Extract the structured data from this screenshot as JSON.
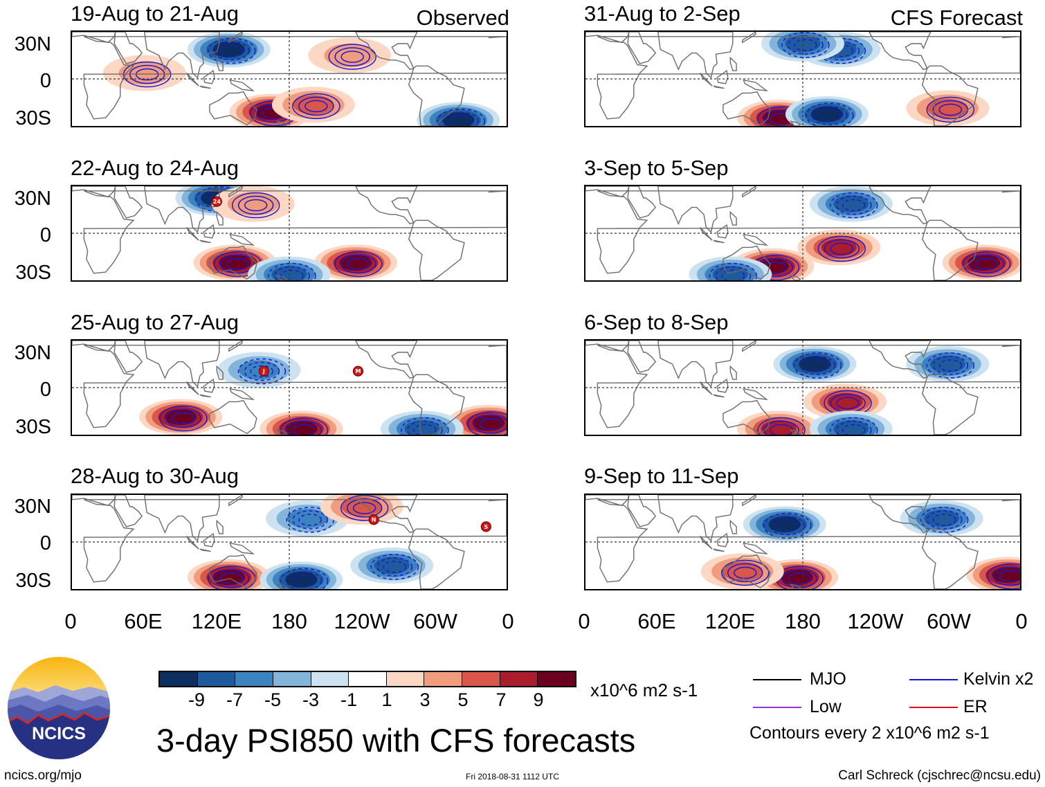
{
  "headers": {
    "left": "Observed",
    "right": "CFS Forecast"
  },
  "panels_left": [
    {
      "title": "19-Aug to 21-Aug"
    },
    {
      "title": "22-Aug to 24-Aug"
    },
    {
      "title": "25-Aug to 27-Aug"
    },
    {
      "title": "28-Aug to 30-Aug"
    }
  ],
  "panels_right": [
    {
      "title": "31-Aug to 2-Sep"
    },
    {
      "title": "3-Sep to 5-Sep"
    },
    {
      "title": "6-Sep to 8-Sep"
    },
    {
      "title": "9-Sep to 11-Sep"
    }
  ],
  "lat_labels": [
    "30N",
    "0",
    "30S"
  ],
  "lon_labels": [
    "0",
    "60E",
    "120E",
    "180",
    "120W",
    "60W",
    "0"
  ],
  "storm_markers": [
    {
      "panel": "left-1",
      "label": "24"
    },
    {
      "panel": "left-2",
      "label": "J"
    },
    {
      "panel": "left-2",
      "label": "M"
    },
    {
      "panel": "left-3",
      "label": "N"
    },
    {
      "panel": "left-3",
      "label": "S"
    }
  ],
  "colorbar": {
    "labels": [
      "-9",
      "-7",
      "-5",
      "-3",
      "-1",
      "1",
      "3",
      "5",
      "7",
      "9"
    ],
    "colors": [
      "#0b2e5e",
      "#1f5b9c",
      "#3d83c0",
      "#83b5da",
      "#cde2f0",
      "#ffffff",
      "#fbd7c4",
      "#f19d7d",
      "#d9574a",
      "#ab1d2c",
      "#6b0020"
    ],
    "units": "x10^6 m2 s-1"
  },
  "legend": {
    "items": [
      {
        "label": "MJO",
        "color": "#000000"
      },
      {
        "label": "Kelvin x2",
        "color": "#1515d6"
      },
      {
        "label": "Low",
        "color": "#9a34d8"
      },
      {
        "label": "ER",
        "color": "#e01010"
      }
    ],
    "contour_note": "Contours every 2 x10^6 m2 s-1"
  },
  "title": "3-day PSI850 with CFS forecasts",
  "logo_text": "NCICS",
  "footer": {
    "website": "ncics.org/mjo",
    "timestamp": "Fri 2018-08-31 1112 UTC",
    "author": "Carl Schreck (cjschrec@ncsu.edu)"
  },
  "chart_data": {
    "type": "heatmap",
    "variable": "3-day PSI850 anomaly",
    "units": "x10^6 m2 s-1",
    "x_axis": {
      "ticks": [
        "0",
        "60E",
        "120E",
        "180",
        "120W",
        "60W",
        "0"
      ],
      "range_deg_east": [
        0,
        360
      ]
    },
    "y_axis": {
      "ticks": [
        "30N",
        "0",
        "30S"
      ],
      "range_deg": [
        -40,
        40
      ]
    },
    "color_levels": [
      -9,
      -7,
      -5,
      -3,
      -1,
      1,
      3,
      5,
      7,
      9
    ],
    "contour_interval": 2,
    "panels": [
      {
        "period": "19-Aug to 21-Aug",
        "source": "Observed",
        "features": [
          {
            "lon": 130,
            "lat": 25,
            "value": -9
          },
          {
            "lon": 165,
            "lat": -28,
            "value": 9
          },
          {
            "lon": 200,
            "lat": -22,
            "value": 5
          },
          {
            "lon": 230,
            "lat": 20,
            "value": 3
          },
          {
            "lon": 320,
            "lat": -35,
            "value": -9
          },
          {
            "lon": 60,
            "lat": 5,
            "value": 3
          }
        ]
      },
      {
        "period": "22-Aug to 24-Aug",
        "source": "Observed",
        "features": [
          {
            "lon": 120,
            "lat": 30,
            "value": -9
          },
          {
            "lon": 135,
            "lat": -25,
            "value": 9
          },
          {
            "lon": 235,
            "lat": -25,
            "value": 9
          },
          {
            "lon": 150,
            "lat": 25,
            "value": 3
          },
          {
            "lon": 180,
            "lat": -35,
            "value": -7
          }
        ]
      },
      {
        "period": "25-Aug to 27-Aug",
        "source": "Observed",
        "features": [
          {
            "lon": 90,
            "lat": -25,
            "value": 9
          },
          {
            "lon": 190,
            "lat": -35,
            "value": 9
          },
          {
            "lon": 155,
            "lat": 15,
            "value": -5
          },
          {
            "lon": 345,
            "lat": -30,
            "value": 9
          },
          {
            "lon": 290,
            "lat": -35,
            "value": -7
          }
        ]
      },
      {
        "period": "28-Aug to 30-Aug",
        "source": "Observed",
        "features": [
          {
            "lon": 130,
            "lat": -30,
            "value": 9
          },
          {
            "lon": 190,
            "lat": -32,
            "value": -9
          },
          {
            "lon": 195,
            "lat": 20,
            "value": -5
          },
          {
            "lon": 240,
            "lat": 30,
            "value": 5
          },
          {
            "lon": 265,
            "lat": -20,
            "value": -7
          }
        ]
      },
      {
        "period": "31-Aug to 2-Sep",
        "source": "CFS Forecast",
        "features": [
          {
            "lon": 160,
            "lat": -33,
            "value": 9
          },
          {
            "lon": 200,
            "lat": -30,
            "value": -9
          },
          {
            "lon": 210,
            "lat": 25,
            "value": -7
          },
          {
            "lon": 180,
            "lat": 30,
            "value": -7
          },
          {
            "lon": 300,
            "lat": -25,
            "value": 5
          }
        ]
      },
      {
        "period": "3-Sep to 5-Sep",
        "source": "CFS Forecast",
        "features": [
          {
            "lon": 155,
            "lat": -28,
            "value": 9
          },
          {
            "lon": 210,
            "lat": -12,
            "value": 7
          },
          {
            "lon": 220,
            "lat": 25,
            "value": -7
          },
          {
            "lon": 330,
            "lat": -25,
            "value": 9
          },
          {
            "lon": 120,
            "lat": -35,
            "value": -7
          }
        ]
      },
      {
        "period": "6-Sep to 8-Sep",
        "source": "CFS Forecast",
        "features": [
          {
            "lon": 190,
            "lat": 20,
            "value": -9
          },
          {
            "lon": 215,
            "lat": -12,
            "value": 7
          },
          {
            "lon": 300,
            "lat": 20,
            "value": -7
          },
          {
            "lon": 160,
            "lat": -35,
            "value": 7
          },
          {
            "lon": 220,
            "lat": -35,
            "value": -7
          }
        ]
      },
      {
        "period": "9-Sep to 11-Sep",
        "source": "CFS Forecast",
        "features": [
          {
            "lon": 165,
            "lat": 15,
            "value": -9
          },
          {
            "lon": 295,
            "lat": 20,
            "value": -7
          },
          {
            "lon": 175,
            "lat": -30,
            "value": 9
          },
          {
            "lon": 350,
            "lat": -28,
            "value": 9
          },
          {
            "lon": 130,
            "lat": -25,
            "value": 5
          }
        ]
      }
    ]
  }
}
